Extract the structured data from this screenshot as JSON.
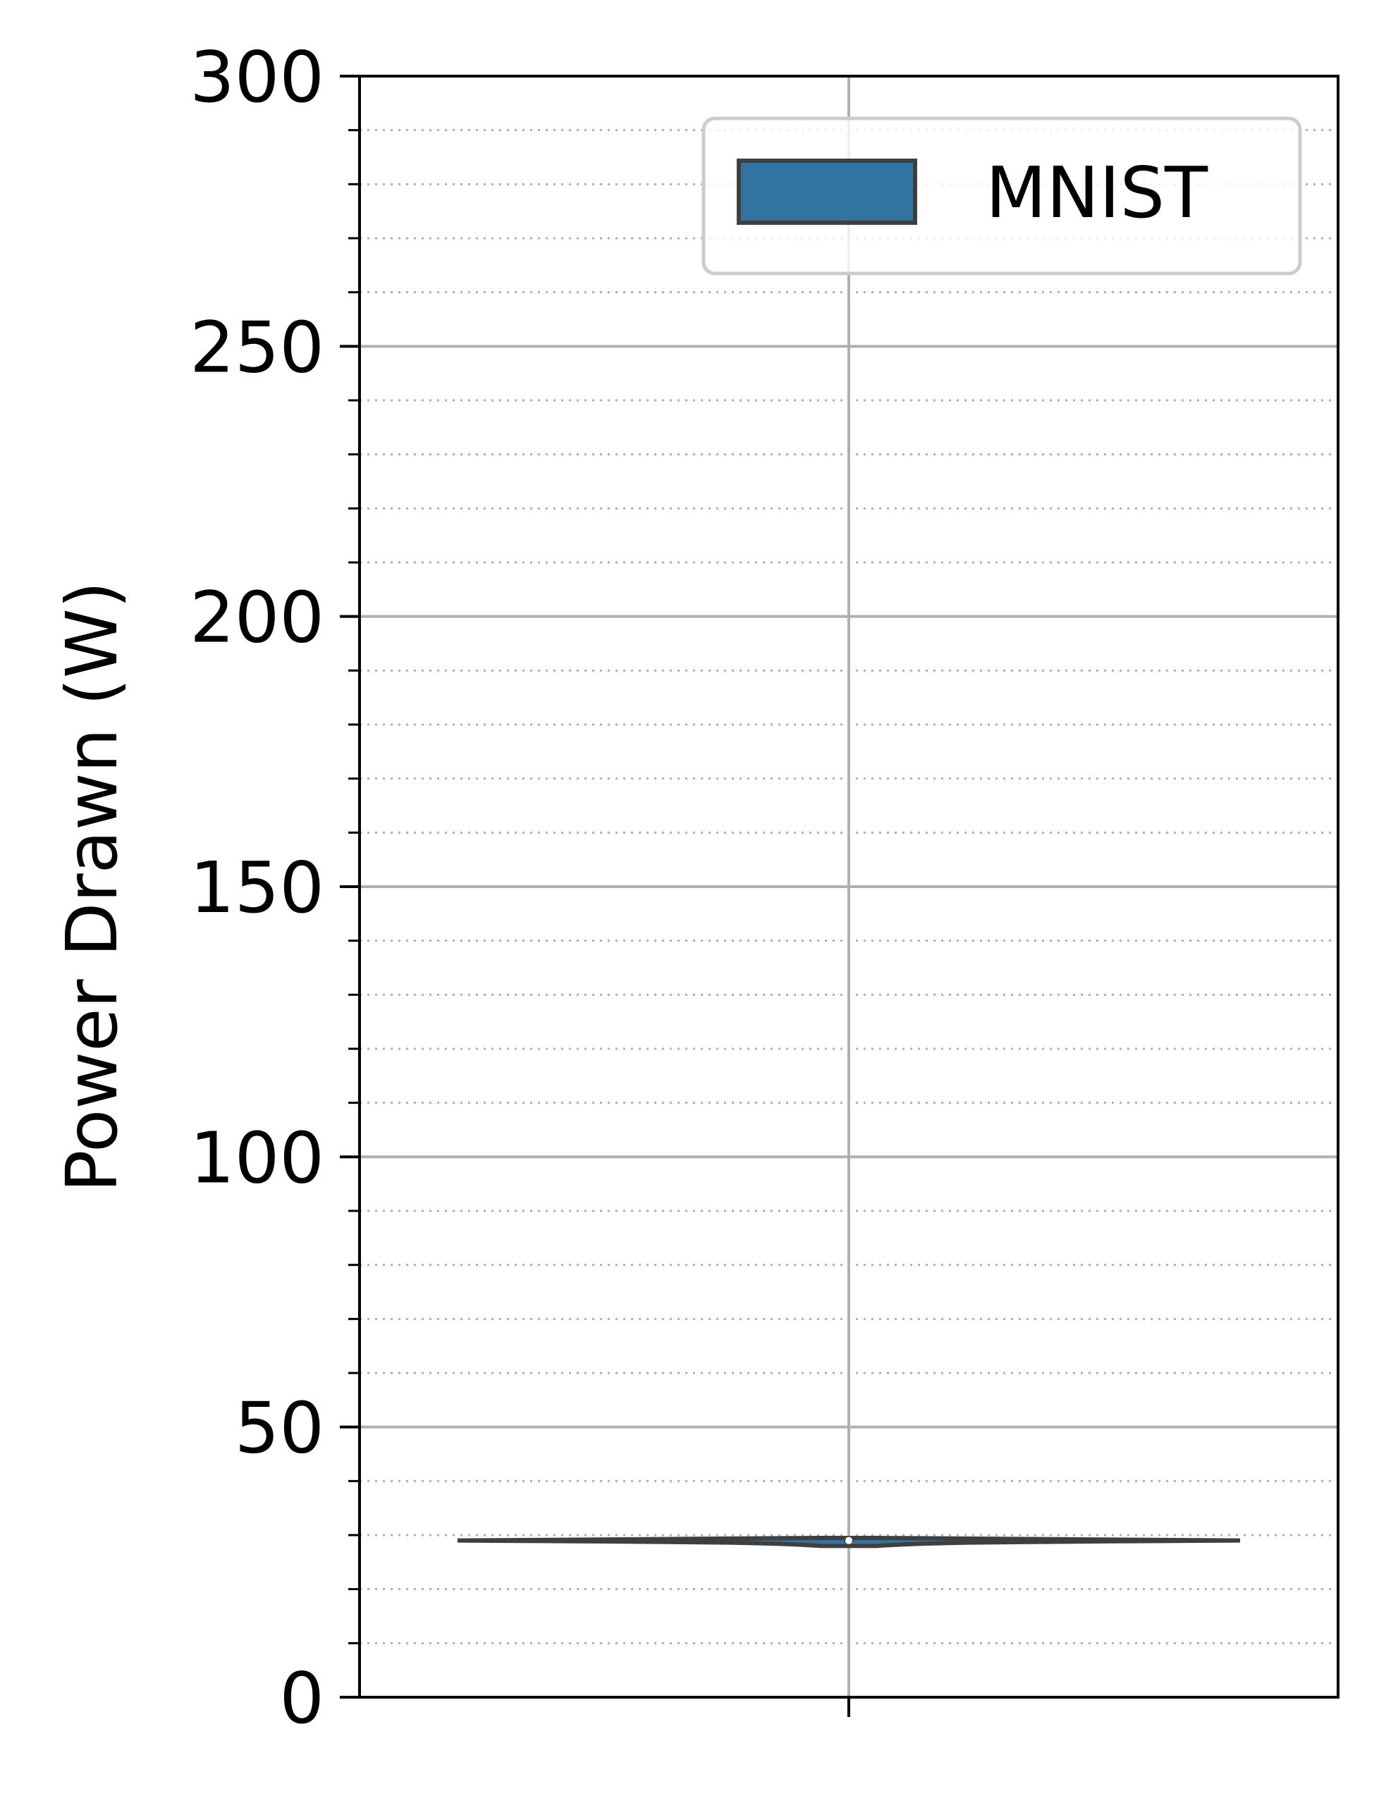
{
  "chart_data": {
    "type": "violin",
    "title": "",
    "xlabel": "",
    "ylabel": "Power Drawn (W)",
    "ylim": [
      0,
      300
    ],
    "yticks": [
      "0",
      "50",
      "100",
      "150",
      "200",
      "250",
      "300"
    ],
    "grid": {
      "major": true,
      "minor": true,
      "minor_step": 10
    },
    "legend_position": "top-right",
    "series": [
      {
        "name": "MNIST",
        "median": 29.0,
        "q1": 28.7,
        "q3": 29.4,
        "min": 28.0,
        "max": 30.0,
        "color": "#3274a1"
      }
    ]
  },
  "colors": {
    "violin_fill": "#3274a1",
    "violin_edge": "#3f3f3f",
    "grid_major": "#b0b0b0",
    "grid_minor": "#b0b0b0"
  }
}
